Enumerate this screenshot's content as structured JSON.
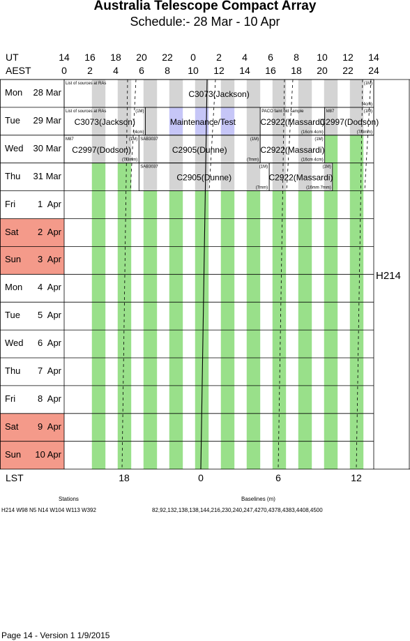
{
  "title": "Australia Telescope Compact Array",
  "subtitle": "Schedule:- 28 Mar - 10 Apr",
  "axes": {
    "ut_label": "UT",
    "aest_label": "AEST",
    "lst_label": "LST",
    "ut_ticks": [
      "14",
      "16",
      "18",
      "20",
      "22",
      "0",
      "2",
      "4",
      "6",
      "8",
      "10",
      "12",
      "14"
    ],
    "aest_ticks": [
      "0",
      "2",
      "4",
      "6",
      "8",
      "10",
      "12",
      "14",
      "16",
      "18",
      "20",
      "22",
      "24"
    ],
    "lst_ticks": [
      "18",
      "0",
      "6",
      "12"
    ]
  },
  "days": [
    {
      "dow": "Mon",
      "date": "28 Mar",
      "weekend": false
    },
    {
      "dow": "Tue",
      "date": "29 Mar",
      "weekend": false
    },
    {
      "dow": "Wed",
      "date": "30 Mar",
      "weekend": false
    },
    {
      "dow": "Thu",
      "date": "31 Mar",
      "weekend": false
    },
    {
      "dow": "Fri",
      "date": "1  Apr",
      "weekend": false
    },
    {
      "dow": "Sat",
      "date": "2  Apr",
      "weekend": true
    },
    {
      "dow": "Sun",
      "date": "3  Apr",
      "weekend": true
    },
    {
      "dow": "Mon",
      "date": "4  Apr",
      "weekend": false
    },
    {
      "dow": "Tue",
      "date": "5  Apr",
      "weekend": false
    },
    {
      "dow": "Wed",
      "date": "6  Apr",
      "weekend": false
    },
    {
      "dow": "Thu",
      "date": "7  Apr",
      "weekend": false
    },
    {
      "dow": "Fri",
      "date": "8  Apr",
      "weekend": false
    },
    {
      "dow": "Sat",
      "date": "9  Apr",
      "weekend": true
    },
    {
      "dow": "Sun",
      "date": "10 Apr",
      "weekend": true
    }
  ],
  "configuration": "H214",
  "colors": {
    "weekend": "#f49a8a",
    "green": "#99e08a",
    "gray": "#d4d4d4",
    "blue": "#c6c6f7",
    "line": "#000000"
  },
  "blocks": [
    {
      "row": 0,
      "aest_start": 0,
      "aest_end": 24,
      "label": "C3073(Jackson)",
      "tl": "List of sources at RAs",
      "tr": "(1M)",
      "br": "(4cm)"
    },
    {
      "row": 1,
      "aest_start": 0,
      "aest_end": 6.3,
      "label": "C3073(Jackson)",
      "tl": "List of sources at RAs",
      "tr": "(1M)",
      "br": "(4cm)"
    },
    {
      "row": 1,
      "aest_start": 6.3,
      "aest_end": 15.2,
      "label": "Maintenance/Test",
      "tl": "",
      "tr": "",
      "br": ""
    },
    {
      "row": 1,
      "aest_start": 15.2,
      "aest_end": 20.2,
      "label": "C2922(Massardi)",
      "tl": "PACO faint old sample",
      "tr": "",
      "br": "(16cm 4cm)"
    },
    {
      "row": 1,
      "aest_start": 20.2,
      "aest_end": 24,
      "label": "C2997(Dodson)",
      "tl": "M87",
      "tr": "(1M)",
      "br": "(7/3mm)"
    },
    {
      "row": 2,
      "aest_start": 0,
      "aest_end": 5.8,
      "label": "C2997(Dodson)",
      "tl": "M87",
      "tr": "(1M)",
      "br": "(7/3mm)"
    },
    {
      "row": 2,
      "aest_start": 5.8,
      "aest_end": 15.2,
      "label": "C2905(Dunne)",
      "tl": "SAB3037",
      "tr": "(1M)",
      "br": "(7mm)"
    },
    {
      "row": 2,
      "aest_start": 15.2,
      "aest_end": 20.2,
      "label": "C2922(Massardi)",
      "tl": "",
      "tr": "(1M)",
      "br": "(16cm 4cm)"
    },
    {
      "row": 3,
      "aest_start": 5.8,
      "aest_end": 15.9,
      "label": "C2905(Dunne)",
      "tl": "SAB3037",
      "tr": "(1M)",
      "br": "(7mm)"
    },
    {
      "row": 3,
      "aest_start": 15.9,
      "aest_end": 20.8,
      "label": "C2922(Massardi)",
      "tl": "",
      "tr": "(1M)",
      "br": "(16mm 7mm)"
    }
  ],
  "footer": {
    "stations_title": "Stations",
    "stations": "H214   W98 N5 N14 W104 W113 W392",
    "baselines_title": "Baselines (m)",
    "baselines": "82,92,132,138,138,144,216,230,240,247,4270,4378,4383,4408,4500",
    "page_info": "Page 14 - Version 1  1/9/2015"
  }
}
